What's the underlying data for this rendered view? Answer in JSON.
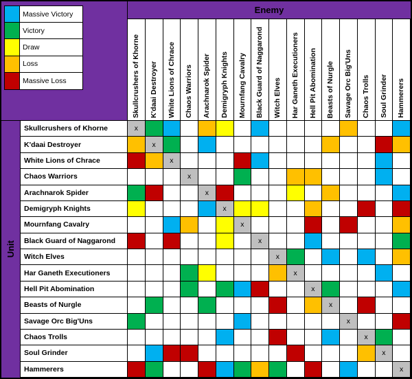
{
  "axis": {
    "column_header": "Enemy",
    "row_header": "Unit"
  },
  "colors": {
    "header_bg": "#7030A0",
    "diagonal_bg": "#BFBFBF",
    "cell_bg": "#FFFFFF",
    "grid_line": "#000000"
  },
  "legend": {
    "items": [
      {
        "code": "C",
        "label": "Massive Victory",
        "color": "#00B0F0"
      },
      {
        "code": "G",
        "label": "Victory",
        "color": "#00B050"
      },
      {
        "code": "Y",
        "label": "Draw",
        "color": "#FFFF00"
      },
      {
        "code": "O",
        "label": "Loss",
        "color": "#FFC000"
      },
      {
        "code": "R",
        "label": "Massive Loss",
        "color": "#C00000"
      }
    ]
  },
  "chart_data": {
    "type": "heatmap",
    "title": "",
    "x_axis_label": "Enemy",
    "y_axis_label": "Unit",
    "diagonal_marker": "x",
    "code_legend": {
      "C": "Massive Victory",
      "G": "Victory",
      "Y": "Draw",
      "O": "Loss",
      "R": "Massive Loss",
      "X": "same unit (diagonal, marked x)",
      "W": "no result (blank)"
    },
    "units": [
      "Skullcrushers of Khorne",
      "K'daai Destroyer",
      "White Lions of Chrace",
      "Chaos Warriors",
      "Arachnarok Spider",
      "Demigryph Knights",
      "Mournfang Cavalry",
      "Black Guard of Naggarond",
      "Witch Elves",
      "Har Ganeth Executioners",
      "Hell Pit Abomination",
      "Beasts of Nurgle",
      "Savage Orc Big'Uns",
      "Chaos Trolls",
      "Soul Grinder",
      "Hammerers"
    ],
    "matrix_rows": [
      "XGCWOYWCWWWWOWWC",
      "OXGWCWWWWWWOWWRO",
      "ROXWWWRCWWWWWWCW",
      "WWWXWWGWWOOWWWCW",
      "GRWWXRWWWYWOWWWC",
      "YWWWCXYYWWOWWRWR",
      "WWCOWYXWWWRWRWWO",
      "RWRWWYWXWWCWWWWG",
      "WWWWWWWWXGWCWCWO",
      "WWWGYWWWOXWWWWCW",
      "WWWGWGCRWWXGWWWC",
      "WGWWGWWWRWOXWRWW",
      "GWWWWWCWWWWWXWWR",
      "WWWWWCWWRWWCWXGW",
      "WCRRWWWWWRWWWOXW",
      "RGWWRCGOGWRWCWWX"
    ]
  }
}
